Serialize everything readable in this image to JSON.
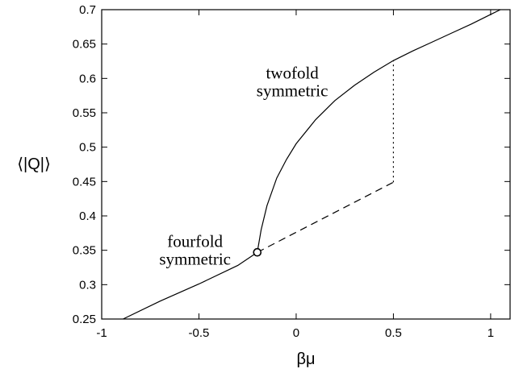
{
  "chart_data": {
    "type": "line",
    "title": "",
    "xlabel": "βμ",
    "ylabel": "⟨|Q|⟩",
    "xlim": [
      -1,
      1.1
    ],
    "ylim": [
      0.25,
      0.7
    ],
    "xticks": [
      -1,
      -0.5,
      0,
      0.5,
      1
    ],
    "xtick_labels": [
      "-1",
      "-0.5",
      "0",
      "0.5",
      "1"
    ],
    "yticks": [
      0.25,
      0.3,
      0.35,
      0.4,
      0.45,
      0.5,
      0.55,
      0.6,
      0.65,
      0.7
    ],
    "ytick_labels": [
      "0.25",
      "0.3",
      "0.35",
      "0.4",
      "0.45",
      "0.5",
      "0.55",
      "0.6",
      "0.65",
      "0.7"
    ],
    "grid": false,
    "legend": "none",
    "series": [
      {
        "style": "solid",
        "x": [
          -0.89,
          -0.7,
          -0.5,
          -0.3,
          -0.2
        ],
        "y": [
          0.25,
          0.276,
          0.301,
          0.328,
          0.347
        ]
      },
      {
        "style": "solid",
        "x": [
          -0.2,
          -0.18,
          -0.15,
          -0.1,
          -0.05,
          0,
          0.1,
          0.2,
          0.3,
          0.4,
          0.5,
          0.6,
          0.7,
          0.8,
          0.9,
          1.0,
          1.05
        ],
        "y": [
          0.347,
          0.38,
          0.415,
          0.455,
          0.482,
          0.505,
          0.54,
          0.568,
          0.59,
          0.609,
          0.626,
          0.64,
          0.653,
          0.666,
          0.679,
          0.693,
          0.7
        ]
      },
      {
        "style": "dashed",
        "x": [
          -0.2,
          0.5
        ],
        "y": [
          0.347,
          0.449
        ]
      },
      {
        "style": "dotted",
        "x": [
          0.5,
          0.5
        ],
        "y": [
          0.449,
          0.626
        ]
      }
    ],
    "markers": [
      {
        "shape": "open-circle",
        "x": -0.2,
        "y": 0.347
      }
    ],
    "annotations": [
      {
        "id": "twofold",
        "lines": [
          "twofold",
          "symmetric"
        ],
        "x": -0.02,
        "y": 0.6
      },
      {
        "id": "fourfold",
        "lines": [
          "fourfold",
          "symmetric"
        ],
        "x": -0.52,
        "y": 0.355
      }
    ],
    "line_color": "#000000"
  }
}
